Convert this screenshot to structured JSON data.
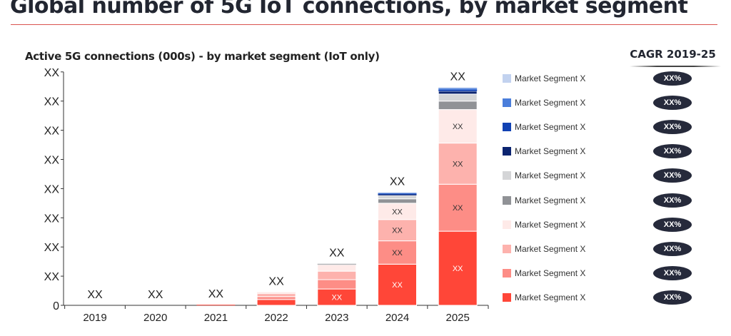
{
  "header": {
    "title": "Global number of 5G IoT connections, by market segment"
  },
  "cagr": {
    "title": "CAGR 2019-25",
    "values": [
      "XX%",
      "XX%",
      "XX%",
      "XX%",
      "XX%",
      "XX%",
      "XX%",
      "XX%",
      "XX%",
      "XX%"
    ]
  },
  "chart_data": {
    "type": "bar",
    "stacked": true,
    "title": "Active 5G connections (000s) - by market segment (IoT only)",
    "xlabel": "",
    "ylabel": "",
    "categories": [
      "2019",
      "2020",
      "2021",
      "2022",
      "2023",
      "2024",
      "2025"
    ],
    "ylim": [
      0,
      8
    ],
    "y_ticks": [
      "0",
      "XX",
      "XX",
      "XX",
      "XX",
      "XX",
      "XX",
      "XX",
      "XX"
    ],
    "grid": false,
    "legend_position": "right",
    "total_labels": [
      "XX",
      "XX",
      "XX",
      "XX",
      "XX",
      "XX",
      "XX"
    ],
    "series": [
      {
        "name": "Market Segment X",
        "color": "#ff4638",
        "values": [
          0,
          0,
          0.02,
          0.2,
          0.56,
          1.41,
          2.54
        ],
        "labels": [
          "",
          "",
          "",
          "",
          "XX",
          "XX",
          "XX"
        ]
      },
      {
        "name": "Market Segment X",
        "color": "#fd8d86",
        "values": [
          0,
          0,
          0,
          0.1,
          0.32,
          0.8,
          1.61
        ],
        "labels": [
          "",
          "",
          "",
          "",
          "",
          "XX",
          "XX"
        ]
      },
      {
        "name": "Market Segment X",
        "color": "#fdb2ad",
        "values": [
          0,
          0,
          0,
          0.1,
          0.29,
          0.73,
          1.41
        ],
        "labels": [
          "",
          "",
          "",
          "",
          "",
          "XX",
          "XX"
        ]
      },
      {
        "name": "Market Segment X",
        "color": "#feeae8",
        "values": [
          0,
          0,
          0,
          0.05,
          0.22,
          0.56,
          1.15
        ],
        "labels": [
          "",
          "",
          "",
          "",
          "",
          "XX",
          "XX"
        ]
      },
      {
        "name": "Market Segment X",
        "color": "#909296",
        "values": [
          0,
          0,
          0,
          0,
          0.03,
          0.15,
          0.29
        ],
        "labels": [
          "",
          "",
          "",
          "",
          "",
          "",
          ""
        ]
      },
      {
        "name": "Market Segment X",
        "color": "#d4d5d7",
        "values": [
          0,
          0,
          0,
          0,
          0.01,
          0.12,
          0.24
        ],
        "labels": [
          "",
          "",
          "",
          "",
          "",
          "",
          ""
        ]
      },
      {
        "name": "Market Segment X",
        "color": "#0b2470",
        "values": [
          0,
          0,
          0,
          0,
          0,
          0.03,
          0.1
        ],
        "labels": [
          "",
          "",
          "",
          "",
          "",
          "",
          ""
        ]
      },
      {
        "name": "Market Segment X",
        "color": "#1142b3",
        "values": [
          0,
          0,
          0,
          0,
          0,
          0.03,
          0.05
        ],
        "labels": [
          "",
          "",
          "",
          "",
          "",
          "",
          ""
        ]
      },
      {
        "name": "Market Segment X",
        "color": "#4a7edb",
        "values": [
          0,
          0,
          0,
          0,
          0,
          0.02,
          0.05
        ],
        "labels": [
          "",
          "",
          "",
          "",
          "",
          "",
          ""
        ]
      },
      {
        "name": "Market Segment X",
        "color": "#c2d2ef",
        "values": [
          0,
          0,
          0,
          0,
          0,
          0.02,
          0.03
        ],
        "labels": [
          "",
          "",
          "",
          "",
          "",
          "",
          ""
        ]
      }
    ]
  }
}
